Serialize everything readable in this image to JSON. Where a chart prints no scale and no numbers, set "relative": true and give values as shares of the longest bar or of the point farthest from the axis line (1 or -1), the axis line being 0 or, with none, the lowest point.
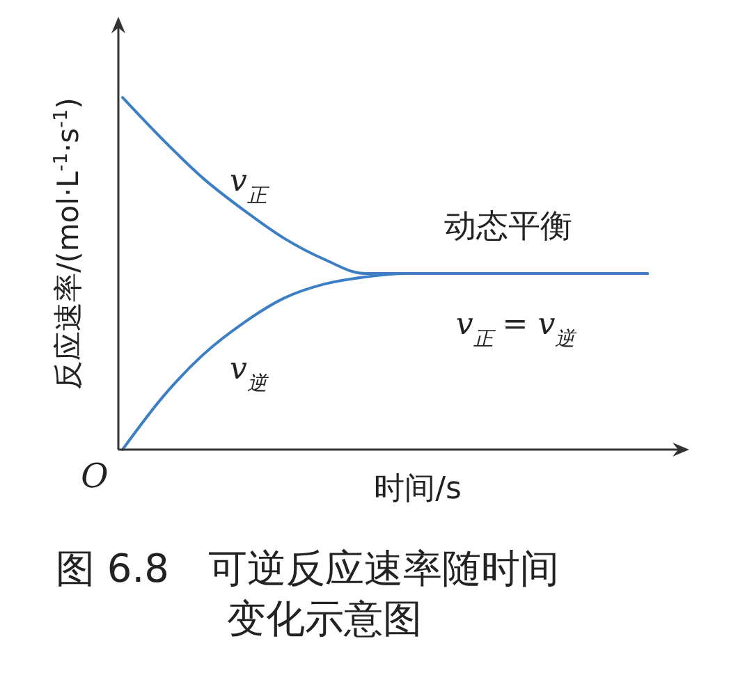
{
  "chart_data": {
    "type": "line",
    "relative": true,
    "xlabel": "时间/s",
    "ylabel": "反应速率/(mol·L$^{-1}$·s$^{-1}$)",
    "categories": [
      null,
      null,
      null,
      null,
      null,
      null,
      null,
      null,
      null,
      null,
      null,
      null,
      null,
      null
    ],
    "series": [
      {
        "name": "v$_{正}$",
        "color": "#3d7fc4",
        "values": [
          1.0,
          0.88,
          0.77,
          0.68,
          0.6,
          0.54,
          0.5,
          0.5,
          0.5,
          0.5,
          0.5,
          0.5,
          0.5,
          0.5
        ]
      },
      {
        "name": "v$_{逆}$",
        "color": "#3d7fc4",
        "values": [
          0,
          0.15,
          0.27,
          0.36,
          0.43,
          0.47,
          0.49,
          0.5,
          0.5,
          0.5,
          0.5,
          0.5,
          0.5,
          0.5
        ]
      }
    ],
    "annotations": [
      "O",
      "动态平衡",
      "v$_{正}$ = v$_{逆}$",
      "图 6.8　可逆反应速率随时间变化示意图"
    ],
    "marker": "none",
    "line_style": "solid"
  }
}
